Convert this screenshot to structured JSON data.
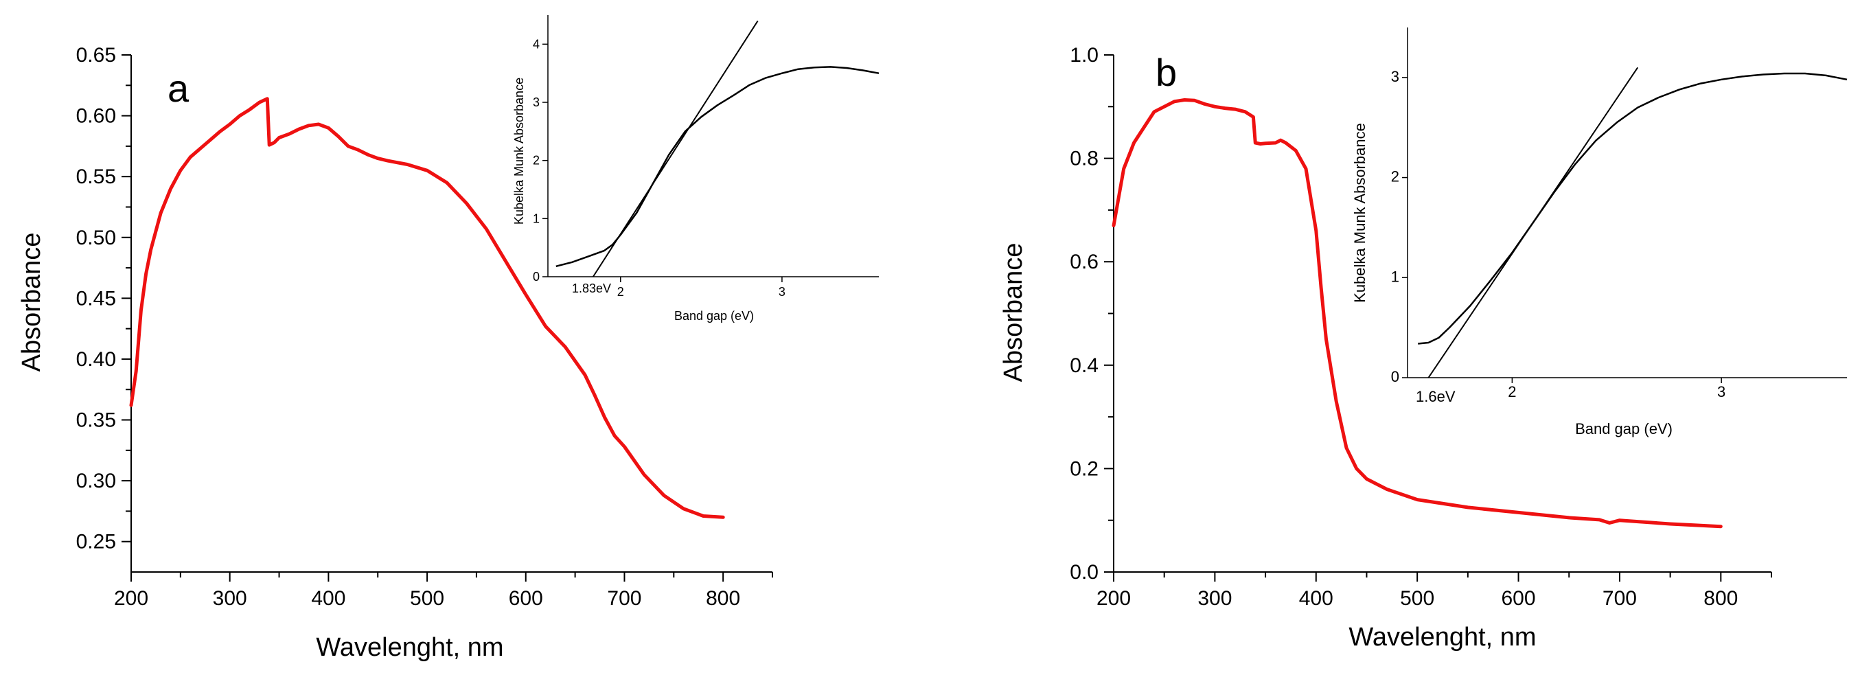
{
  "chart_data": [
    {
      "id": "a",
      "type": "line",
      "panel_label": "a",
      "xlabel": "Wavelenght, nm",
      "ylabel": "Absorbance",
      "xlim": [
        200,
        850
      ],
      "ylim": [
        0.225,
        0.65
      ],
      "xticks": [
        200,
        300,
        400,
        500,
        600,
        700,
        800
      ],
      "xminor": [
        250,
        350,
        450,
        550,
        650,
        750,
        850
      ],
      "yticks": [
        "0.25",
        "0.30",
        "0.35",
        "0.40",
        "0.45",
        "0.50",
        "0.55",
        "0.60",
        "0.65"
      ],
      "yminor": [
        0.275,
        0.325,
        0.375,
        0.425,
        0.475,
        0.525,
        0.575,
        0.625
      ],
      "color": "#ee1111",
      "series": [
        {
          "name": "absorbance",
          "x": [
            200,
            205,
            210,
            215,
            220,
            230,
            240,
            250,
            260,
            270,
            280,
            290,
            300,
            310,
            320,
            330,
            338,
            340,
            345,
            350,
            360,
            370,
            380,
            390,
            400,
            410,
            420,
            430,
            440,
            450,
            460,
            480,
            500,
            520,
            540,
            560,
            580,
            600,
            620,
            640,
            660,
            670,
            680,
            690,
            700,
            720,
            740,
            760,
            780,
            800
          ],
          "y": [
            0.362,
            0.39,
            0.44,
            0.47,
            0.49,
            0.52,
            0.54,
            0.555,
            0.566,
            0.573,
            0.58,
            0.587,
            0.593,
            0.6,
            0.605,
            0.611,
            0.614,
            0.576,
            0.578,
            0.582,
            0.585,
            0.589,
            0.592,
            0.593,
            0.59,
            0.583,
            0.575,
            0.572,
            0.568,
            0.565,
            0.563,
            0.56,
            0.555,
            0.545,
            0.528,
            0.507,
            0.48,
            0.453,
            0.427,
            0.41,
            0.387,
            0.37,
            0.352,
            0.337,
            0.328,
            0.305,
            0.288,
            0.277,
            0.271,
            0.27
          ]
        }
      ],
      "inset": {
        "xlabel": "Band gap (eV)",
        "ylabel": "Kubelka Munk Absorbance",
        "xlim": [
          1.55,
          3.6
        ],
        "ylim": [
          0,
          4.5
        ],
        "xticks": [
          "2",
          "3"
        ],
        "yticks": [
          "0",
          "1",
          "2",
          "3",
          "4"
        ],
        "annotation": "1.83eV",
        "curve": {
          "x": [
            1.6,
            1.7,
            1.8,
            1.9,
            1.95,
            2.0,
            2.1,
            2.2,
            2.3,
            2.4,
            2.5,
            2.6,
            2.7,
            2.8,
            2.9,
            3.0,
            3.1,
            3.2,
            3.3,
            3.4,
            3.5,
            3.6
          ],
          "y": [
            0.18,
            0.25,
            0.35,
            0.45,
            0.55,
            0.72,
            1.1,
            1.6,
            2.1,
            2.5,
            2.75,
            2.95,
            3.12,
            3.3,
            3.42,
            3.5,
            3.57,
            3.6,
            3.61,
            3.59,
            3.55,
            3.5
          ]
        },
        "fit": {
          "x": [
            1.83,
            2.85
          ],
          "y": [
            0,
            4.4
          ]
        }
      }
    },
    {
      "id": "b",
      "type": "line",
      "panel_label": "b",
      "xlabel": "Wavelenght, nm",
      "ylabel": "Absorbance",
      "xlim": [
        200,
        850
      ],
      "ylim": [
        0,
        1.0
      ],
      "xticks": [
        200,
        300,
        400,
        500,
        600,
        700,
        800
      ],
      "xminor": [
        250,
        350,
        450,
        550,
        650,
        750,
        850
      ],
      "yticks": [
        "0.0",
        "0.2",
        "0.4",
        "0.6",
        "0.8",
        "1.0"
      ],
      "yminor": [
        0.1,
        0.3,
        0.5,
        0.7,
        0.9
      ],
      "color": "#ee1111",
      "series": [
        {
          "name": "absorbance",
          "x": [
            200,
            210,
            220,
            230,
            240,
            250,
            260,
            270,
            280,
            290,
            300,
            310,
            320,
            330,
            338,
            340,
            345,
            350,
            360,
            365,
            370,
            380,
            390,
            400,
            405,
            410,
            420,
            430,
            440,
            450,
            470,
            500,
            550,
            600,
            650,
            680,
            690,
            700,
            750,
            800
          ],
          "y": [
            0.67,
            0.78,
            0.83,
            0.86,
            0.89,
            0.9,
            0.91,
            0.913,
            0.912,
            0.905,
            0.9,
            0.897,
            0.895,
            0.89,
            0.88,
            0.83,
            0.828,
            0.829,
            0.83,
            0.835,
            0.83,
            0.815,
            0.78,
            0.66,
            0.55,
            0.45,
            0.33,
            0.24,
            0.2,
            0.18,
            0.16,
            0.14,
            0.125,
            0.115,
            0.105,
            0.101,
            0.095,
            0.1,
            0.093,
            0.088
          ]
        }
      ],
      "inset": {
        "xlabel": "Band gap (eV)",
        "ylabel": "Kubelka Munk Absorbance",
        "xlim": [
          1.5,
          3.6
        ],
        "ylim": [
          0,
          3.5
        ],
        "xticks": [
          "2",
          "3"
        ],
        "yticks": [
          "0",
          "1",
          "2",
          "3"
        ],
        "annotation": "1.6eV",
        "curve": {
          "x": [
            1.55,
            1.6,
            1.65,
            1.7,
            1.8,
            1.9,
            2.0,
            2.1,
            2.2,
            2.3,
            2.4,
            2.5,
            2.6,
            2.7,
            2.8,
            2.9,
            3.0,
            3.1,
            3.2,
            3.3,
            3.4,
            3.5,
            3.6
          ],
          "y": [
            0.34,
            0.35,
            0.4,
            0.5,
            0.72,
            0.98,
            1.25,
            1.55,
            1.85,
            2.13,
            2.37,
            2.55,
            2.7,
            2.8,
            2.88,
            2.94,
            2.98,
            3.01,
            3.03,
            3.04,
            3.04,
            3.02,
            2.98
          ]
        },
        "fit": {
          "x": [
            1.6,
            2.6
          ],
          "y": [
            0,
            3.1
          ]
        }
      }
    }
  ]
}
